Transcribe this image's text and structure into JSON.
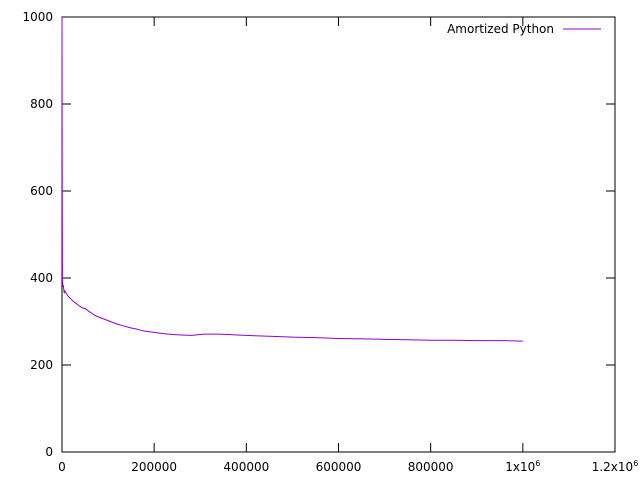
{
  "chart_data": {
    "type": "line",
    "title": "",
    "xlabel": "",
    "ylabel": "",
    "xlim": [
      0,
      1200000
    ],
    "ylim": [
      0,
      1000
    ],
    "x_ticks": [
      0,
      200000,
      400000,
      600000,
      800000,
      1000000,
      1200000
    ],
    "x_tick_labels": [
      "0",
      "200000",
      "400000",
      "600000",
      "800000",
      "1x10",
      "1.2x10"
    ],
    "x_tick_exponents": [
      "",
      "",
      "",
      "",
      "",
      "6",
      "6"
    ],
    "y_ticks": [
      0,
      200,
      400,
      600,
      800,
      1000
    ],
    "y_tick_labels": [
      "0",
      "200",
      "400",
      "600",
      "800",
      "1000"
    ],
    "grid": false,
    "legend_position": "top-right",
    "colors": {
      "series": "#9400d3",
      "axis": "#000000"
    },
    "series": [
      {
        "name": "Amortized Python",
        "x": [
          0,
          500,
          1000,
          2000,
          3000,
          4000,
          5000,
          6000,
          7000,
          8000,
          10000,
          12000,
          15000,
          20000,
          25000,
          30000,
          35000,
          40000,
          45000,
          50000,
          55000,
          60000,
          65000,
          70000,
          75000,
          80000,
          90000,
          100000,
          110000,
          120000,
          130000,
          140000,
          150000,
          160000,
          170000,
          180000,
          200000,
          220000,
          240000,
          260000,
          280000,
          290000,
          300000,
          310000,
          320000,
          340000,
          360000,
          380000,
          400000,
          450000,
          500000,
          550000,
          600000,
          650000,
          700000,
          750000,
          800000,
          850000,
          900000,
          950000,
          1000000
        ],
        "y": [
          1000,
          620,
          395,
          380,
          383,
          372,
          365,
          370,
          368,
          366,
          364,
          360,
          356,
          351,
          346,
          342,
          338,
          334,
          331,
          330,
          326,
          322,
          319,
          315,
          312,
          310,
          306,
          302,
          298,
          294,
          291,
          288,
          285,
          283,
          280,
          278,
          275,
          272,
          270,
          269,
          268,
          269,
          270,
          271,
          271,
          271,
          270,
          269,
          268,
          266,
          264,
          263,
          261,
          260,
          259,
          258,
          257,
          257,
          256,
          256,
          255
        ]
      }
    ]
  }
}
